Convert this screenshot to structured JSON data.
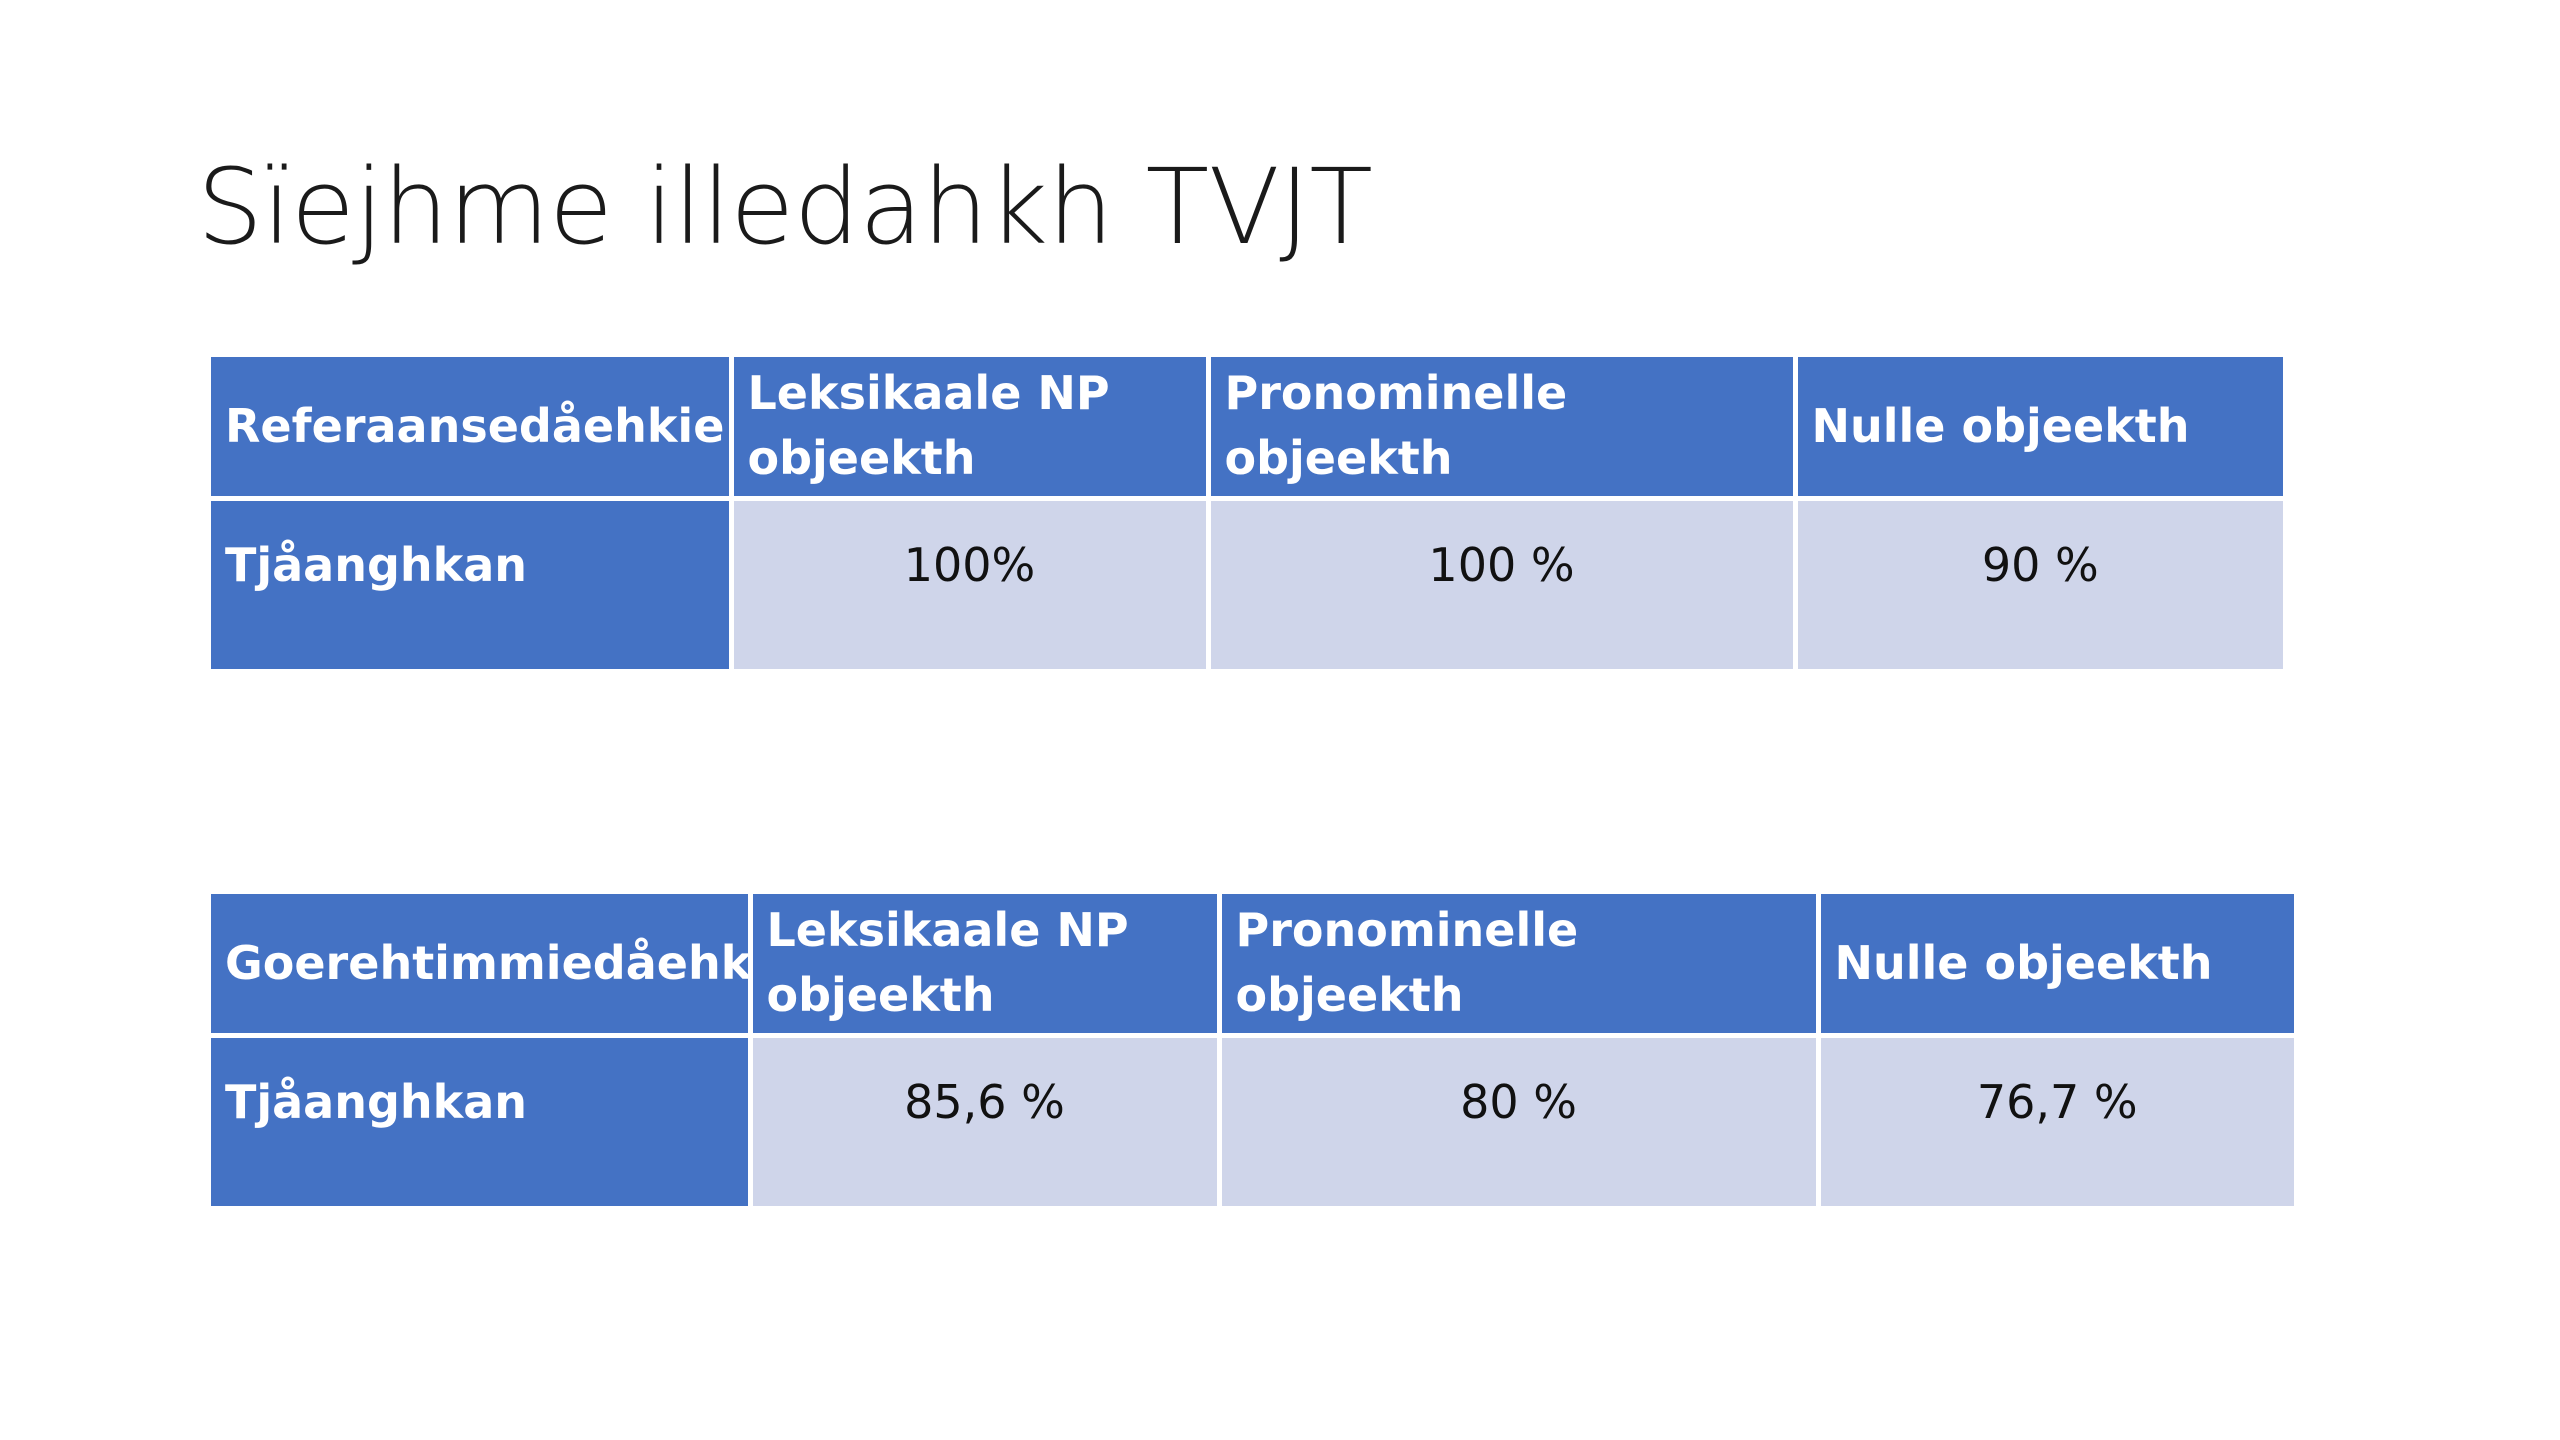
{
  "slide": {
    "title": "Sïejhme illedahkh TVJT"
  },
  "table_1": {
    "headers": [
      "Referaansedåehkie",
      "Leksikaale NP objeekth",
      "Pronominelle objeekth",
      "Nulle objeekth"
    ],
    "rows": [
      {
        "label": "Tjåanghkan",
        "values": [
          "100%",
          "100 %",
          "90 %"
        ]
      }
    ]
  },
  "table_2": {
    "headers": [
      "Goerehtimmiedåehkie",
      "Leksikaale NP objeekth",
      "Pronominelle objeekth",
      "Nulle objeekth"
    ],
    "rows": [
      {
        "label": "Tjåanghkan",
        "values": [
          "85,6 %",
          "80 %",
          "76,7 %"
        ]
      }
    ]
  },
  "colors": {
    "header_blue": "#4472c4",
    "cell_lavender": "#cfd5ea",
    "title_text": "#1a1a1a"
  }
}
